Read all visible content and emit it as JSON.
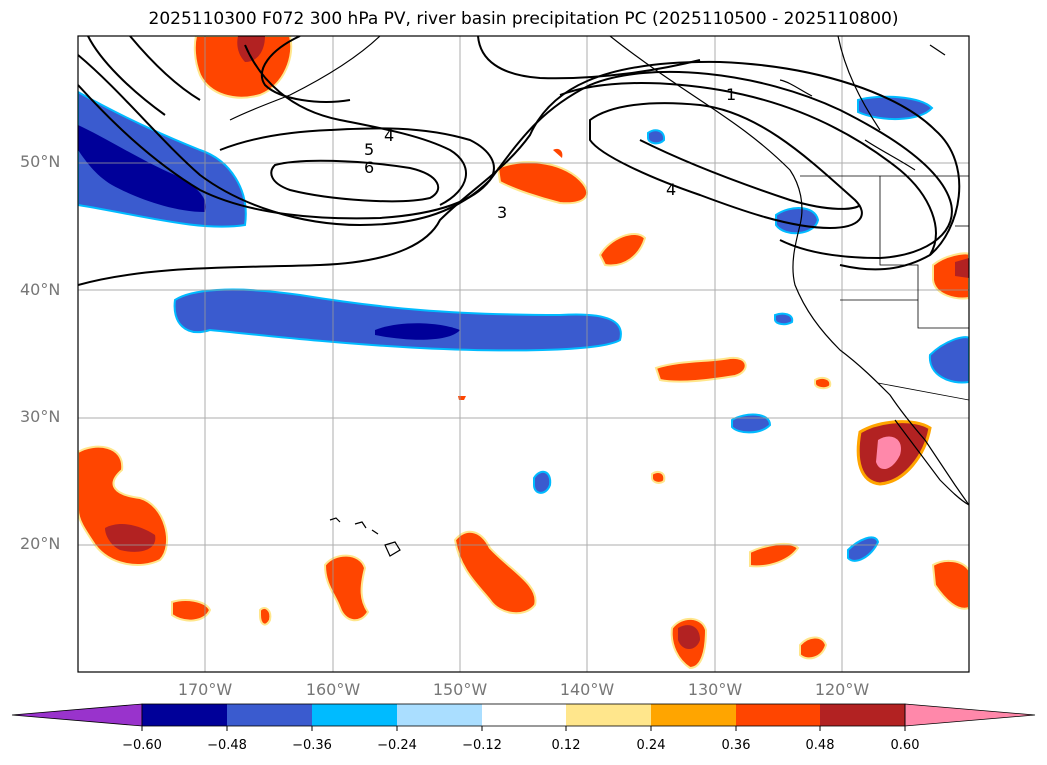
{
  "title": "2025110300 F072 300 hPa PV, river basin precipitation PC (2025110500 - 2025110800)",
  "map": {
    "lat_labels": [
      "50°N",
      "40°N",
      "30°N",
      "20°N"
    ],
    "lon_labels": [
      "170°W",
      "160°W",
      "150°W",
      "140°W",
      "130°W",
      "120°W"
    ],
    "contour_labels": [
      "1",
      "3",
      "4",
      "4",
      "5",
      "6"
    ]
  },
  "colorbar": {
    "tick_labels": [
      "−0.60",
      "−0.48",
      "−0.36",
      "−0.24",
      "−0.12",
      "0.12",
      "0.24",
      "0.36",
      "0.48",
      "0.60"
    ],
    "colors": [
      "#9933cc",
      "#000099",
      "#3a5bcf",
      "#00bbff",
      "#aadeff",
      "#ffffff",
      "#ffe68c",
      "#ffa500",
      "#ff4500",
      "#b22222",
      "#ff88aa"
    ]
  }
}
